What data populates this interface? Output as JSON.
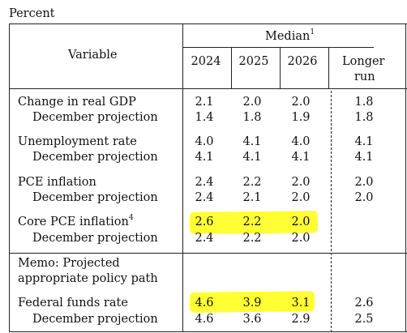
{
  "unit_label": "Percent",
  "header": {
    "variable": "Variable",
    "median": "Median",
    "median_note": "1",
    "years": [
      "2024",
      "2025",
      "2026"
    ],
    "longer_run_1": "Longer",
    "longer_run_2": "run"
  },
  "rows": {
    "gdp": {
      "label": "Change in real GDP",
      "values": [
        "2.1",
        "2.0",
        "2.0",
        "1.8"
      ]
    },
    "gdp_dec": {
      "label": "December projection",
      "values": [
        "1.4",
        "1.8",
        "1.9",
        "1.8"
      ]
    },
    "unemp": {
      "label": "Unemployment rate",
      "values": [
        "4.0",
        "4.1",
        "4.0",
        "4.1"
      ]
    },
    "unemp_dec": {
      "label": "December projection",
      "values": [
        "4.1",
        "4.1",
        "4.1",
        "4.1"
      ]
    },
    "pce": {
      "label": "PCE inflation",
      "values": [
        "2.4",
        "2.2",
        "2.0",
        "2.0"
      ]
    },
    "pce_dec": {
      "label": "December projection",
      "values": [
        "2.4",
        "2.1",
        "2.0",
        "2.0"
      ]
    },
    "core": {
      "label": "Core PCE inflation",
      "note": "4",
      "values": [
        "2.6",
        "2.2",
        "2.0"
      ]
    },
    "core_dec": {
      "label": "December projection",
      "values": [
        "2.4",
        "2.2",
        "2.0"
      ]
    },
    "memo_1": "Memo: Projected",
    "memo_2": "appropriate policy path",
    "ffr": {
      "label": "Federal funds rate",
      "values": [
        "4.6",
        "3.9",
        "3.1",
        "2.6"
      ]
    },
    "ffr_dec": {
      "label": "December projection",
      "values": [
        "4.6",
        "3.6",
        "2.9",
        "2.5"
      ]
    }
  },
  "highlight_color": "#ffff33"
}
